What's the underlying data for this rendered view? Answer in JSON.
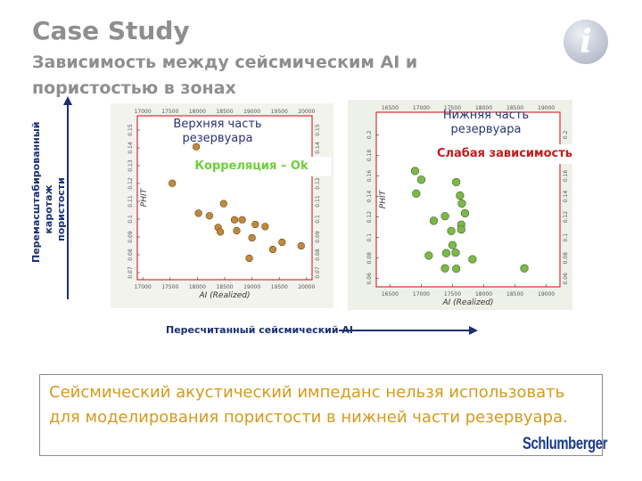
{
  "slide": {
    "title": "Case Study",
    "subtitle": "Зависимость между сейсмическим AI и пористостью в зонах",
    "y_axis_caption": "Перемасштабированный каротаж пористости",
    "x_axis_caption": "Пересчитанный сейсмический AI",
    "note": "Сейсмический акустический импеданс нельзя использовать для моделирования пористости в нижней части резервуара.",
    "logo_text": "Schlumberger",
    "info_icon": "info-icon"
  },
  "colors": {
    "title_gray": "#8e8e8e",
    "accent_navy": "#1a2f73",
    "note_text": "#d49a1c",
    "upper_points": "#c08a3e",
    "lower_points": "#7db84a",
    "corr_ok": "#6fcf3a",
    "corr_weak": "#c41a1a",
    "plot_frame": "#d93030"
  },
  "chart_data": [
    {
      "type": "scatter",
      "panel_label": "Верхняя часть резервуара",
      "annotation": "Корреляция – Ok",
      "xlabel": "AI (Realized)",
      "ylabel": "PHIT",
      "x_ticks": [
        "17000",
        "17500",
        "18000",
        "18500",
        "19000",
        "19500",
        "20000"
      ],
      "y_ticks": [
        "0.07",
        "0.08",
        "0.09",
        "0.1",
        "0.11",
        "0.12",
        "0.13",
        "0.14",
        "0.15"
      ],
      "xlim": [
        16900,
        20100
      ],
      "ylim": [
        0.066,
        0.158
      ],
      "x": [
        17980,
        17540,
        18020,
        18480,
        18220,
        18680,
        18820,
        18380,
        18420,
        19060,
        18720,
        19240,
        19000,
        19550,
        19380,
        19900,
        18950
      ],
      "y": [
        0.1406,
        0.1201,
        0.1033,
        0.1087,
        0.1019,
        0.0996,
        0.0996,
        0.0953,
        0.0928,
        0.097,
        0.0935,
        0.0958,
        0.0895,
        0.087,
        0.083,
        0.085,
        0.078
      ]
    },
    {
      "type": "scatter",
      "panel_label": "Нижняя часть резервуара",
      "annotation": "Слабая зависимость",
      "xlabel": "AI (Realized)",
      "ylabel": "PHIT",
      "x_ticks": [
        "16500",
        "17000",
        "17500",
        "18000",
        "18500",
        "19000"
      ],
      "y_ticks": [
        "0.06",
        "0.08",
        "0.1",
        "0.12",
        "0.14",
        "0.16",
        "0.18",
        "0.2"
      ],
      "xlim": [
        16280,
        19220
      ],
      "ylim": [
        0.052,
        0.222
      ],
      "x": [
        16900,
        17000,
        16920,
        17560,
        17620,
        17650,
        17700,
        17380,
        17200,
        17640,
        17640,
        17480,
        17500,
        17550,
        17400,
        17120,
        18650,
        17380,
        17560,
        17820
      ],
      "y": [
        0.1648,
        0.1563,
        0.1428,
        0.154,
        0.1409,
        0.1331,
        0.1236,
        0.1208,
        0.1163,
        0.1125,
        0.1078,
        0.1064,
        0.0926,
        0.0852,
        0.0848,
        0.0824,
        0.07,
        0.07,
        0.0696,
        0.0788
      ]
    }
  ]
}
